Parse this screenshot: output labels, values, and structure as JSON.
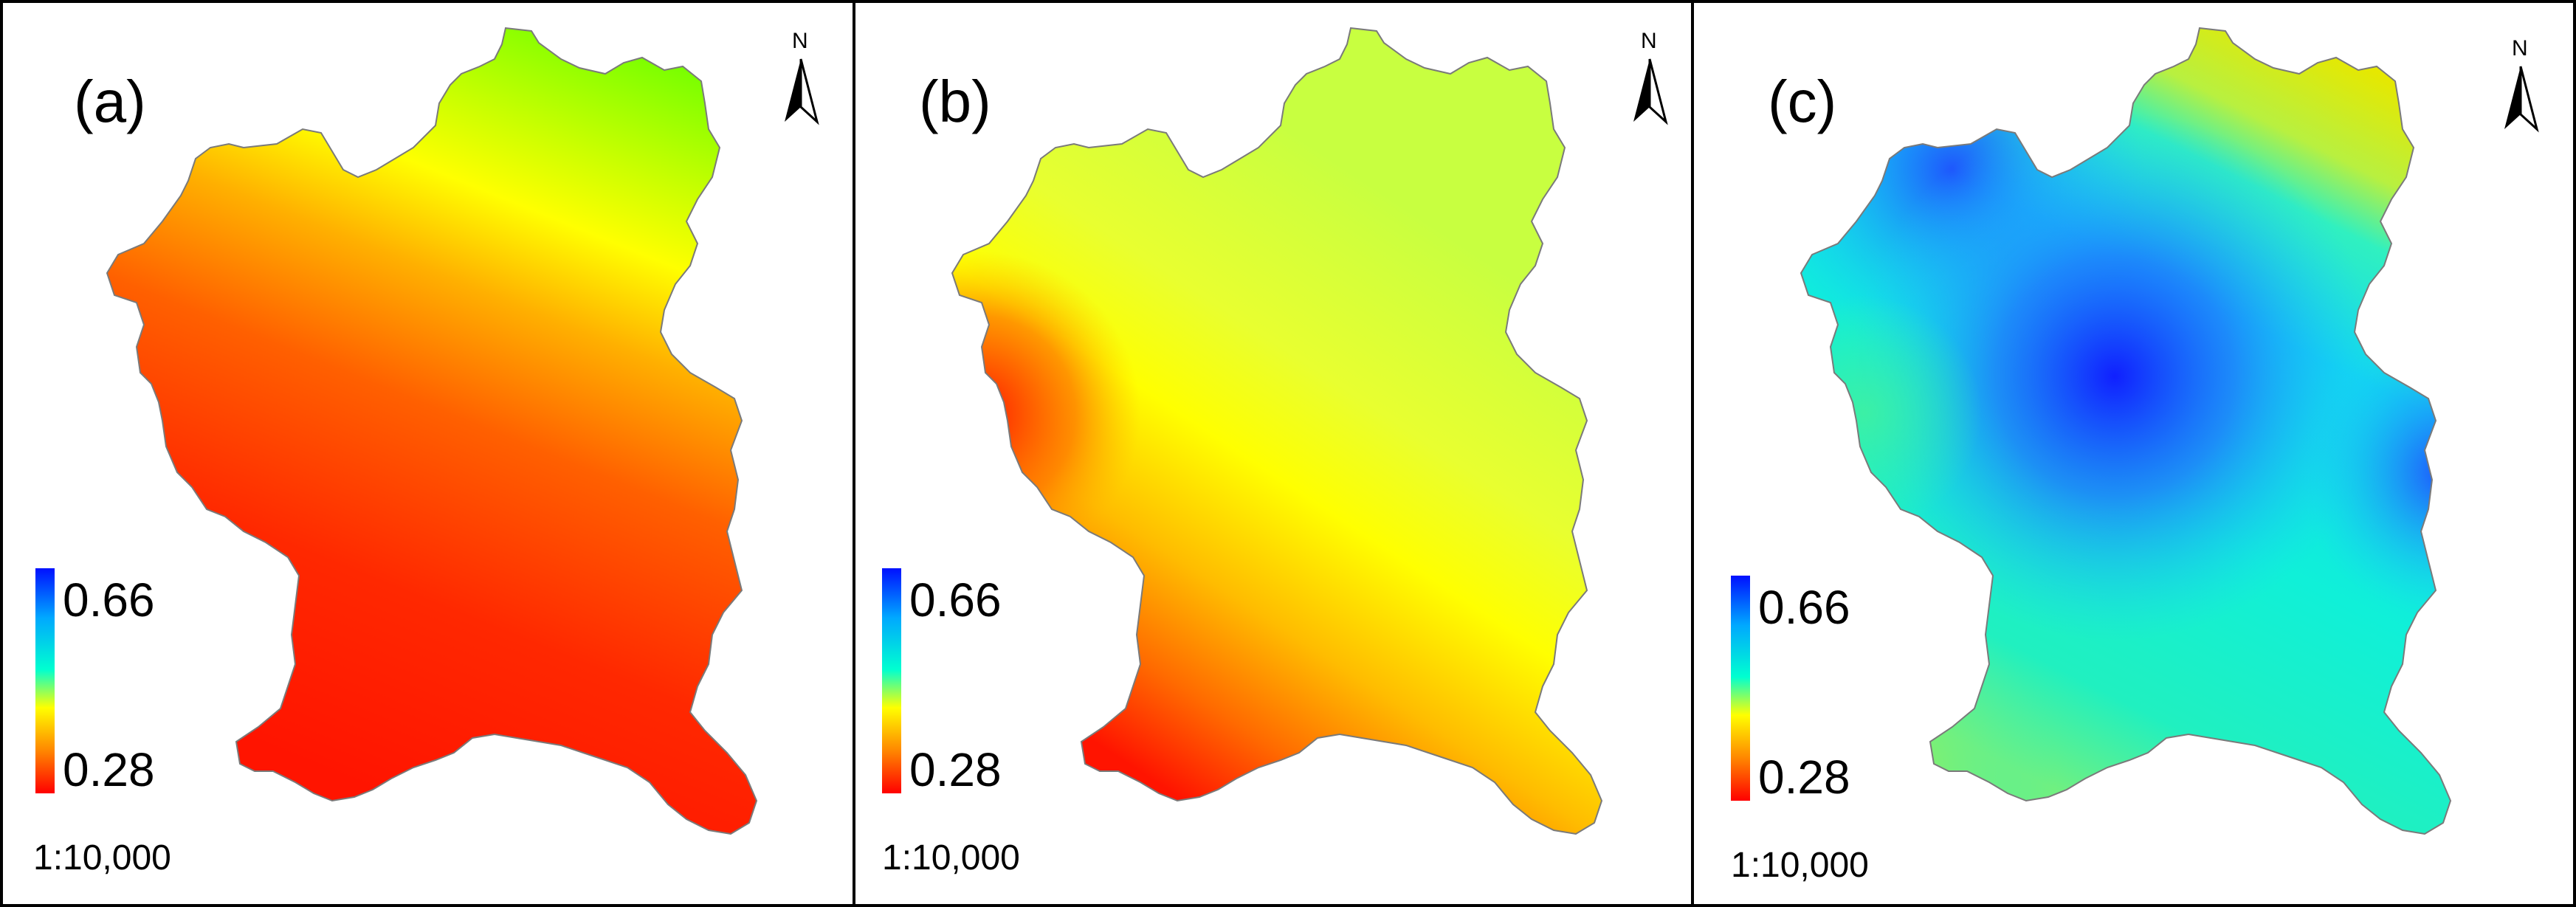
{
  "panels": [
    {
      "label": "(a)",
      "north_label": "N",
      "legend_max": "0.66",
      "legend_min": "0.28",
      "scale": "1:10,000",
      "surface": "mostly-red-orange-with-yellow-green-in-north"
    },
    {
      "label": "(b)",
      "north_label": "N",
      "legend_max": "0.66",
      "legend_min": "0.28",
      "scale": "1:10,000",
      "surface": "mostly-yellow-green-with-red-in-southwest"
    },
    {
      "label": "(c)",
      "north_label": "N",
      "legend_max": "0.66",
      "legend_min": "0.28",
      "scale": "1:10,000",
      "surface": "mostly-cyan-blue-with-yellow-in-northeast"
    }
  ],
  "colors": {
    "legend_ramp": [
      "#0000ff",
      "#00b0ff",
      "#00ffd0",
      "#ffff00",
      "#ff8000",
      "#ff0000"
    ],
    "red": "#ff1a00",
    "orange": "#ff7a00",
    "yellow": "#ffff00",
    "yellow_green": "#ccff40",
    "green": "#80ff00",
    "cyan": "#00ffdd",
    "light_blue": "#20c8ff",
    "blue": "#1020ff",
    "outline": "#7a7a7a"
  }
}
